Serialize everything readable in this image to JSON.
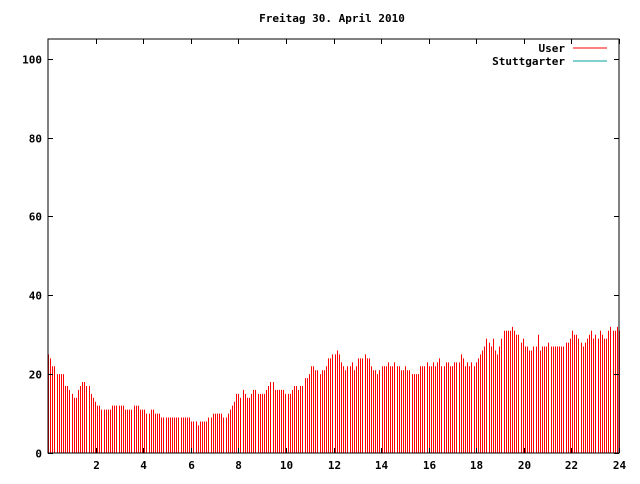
{
  "chart_data": {
    "type": "bar",
    "title": "Freitag 30. April 2010",
    "xlabel": "",
    "ylabel": "",
    "xlim": [
      0,
      24
    ],
    "ylim": [
      0,
      105
    ],
    "x_ticks": [
      2,
      4,
      6,
      8,
      10,
      12,
      14,
      16,
      18,
      20,
      22,
      24
    ],
    "y_ticks": [
      0,
      20,
      40,
      60,
      80,
      100
    ],
    "grid": false,
    "legend_position": "top-right",
    "series": [
      {
        "name": "User",
        "color": "#ff0000",
        "values": [
          25,
          24,
          22,
          22,
          20,
          20,
          20,
          20,
          17,
          17,
          16,
          15,
          14,
          14,
          16,
          17,
          18,
          18,
          17,
          17,
          15,
          14,
          13,
          12,
          12,
          11,
          11,
          11,
          11,
          11,
          12,
          12,
          12,
          12,
          12,
          12,
          11,
          11,
          11,
          11,
          12,
          12,
          12,
          11,
          11,
          11,
          10,
          10,
          11,
          11,
          10,
          10,
          10,
          9,
          9,
          9,
          9,
          9,
          9,
          9,
          9,
          9,
          9,
          9,
          9,
          9,
          9,
          8,
          8,
          8,
          7,
          8,
          8,
          8,
          8,
          9,
          9,
          10,
          10,
          10,
          10,
          10,
          9,
          9,
          10,
          11,
          12,
          13,
          15,
          15,
          14,
          16,
          15,
          14,
          14,
          15,
          16,
          16,
          15,
          15,
          15,
          15,
          16,
          17,
          18,
          18,
          16,
          16,
          16,
          16,
          16,
          15,
          15,
          15,
          16,
          17,
          17,
          16,
          17,
          17,
          19,
          19,
          20,
          22,
          22,
          21,
          21,
          20,
          21,
          21,
          22,
          24,
          24,
          25,
          25,
          26,
          25,
          23,
          22,
          21,
          22,
          22,
          23,
          21,
          22,
          24,
          24,
          24,
          25,
          24,
          24,
          22,
          21,
          21,
          20,
          21,
          22,
          22,
          22,
          23,
          22,
          22,
          23,
          22,
          22,
          21,
          21,
          22,
          21,
          21,
          20,
          20,
          20,
          20,
          22,
          22,
          22,
          23,
          22,
          22,
          23,
          22,
          23,
          24,
          22,
          22,
          23,
          23,
          22,
          22,
          23,
          23,
          23,
          25,
          24,
          22,
          23,
          22,
          23,
          22,
          23,
          24,
          25,
          26,
          27,
          29,
          28,
          27,
          29,
          26,
          25,
          27,
          29,
          31,
          31,
          31,
          31,
          32,
          31,
          30,
          30,
          28,
          29,
          27,
          27,
          26,
          26,
          27,
          27,
          30,
          26,
          27,
          27,
          27,
          28,
          27,
          27,
          27,
          27,
          27,
          27,
          27,
          28,
          28,
          29,
          31,
          30,
          30,
          29,
          28,
          27,
          28,
          29,
          30,
          31,
          29,
          30,
          29,
          31,
          30,
          29,
          29,
          31,
          32,
          31,
          31,
          32,
          31
        ]
      },
      {
        "name": "Stuttgarter",
        "color": "#00a0a0",
        "values": []
      }
    ]
  }
}
